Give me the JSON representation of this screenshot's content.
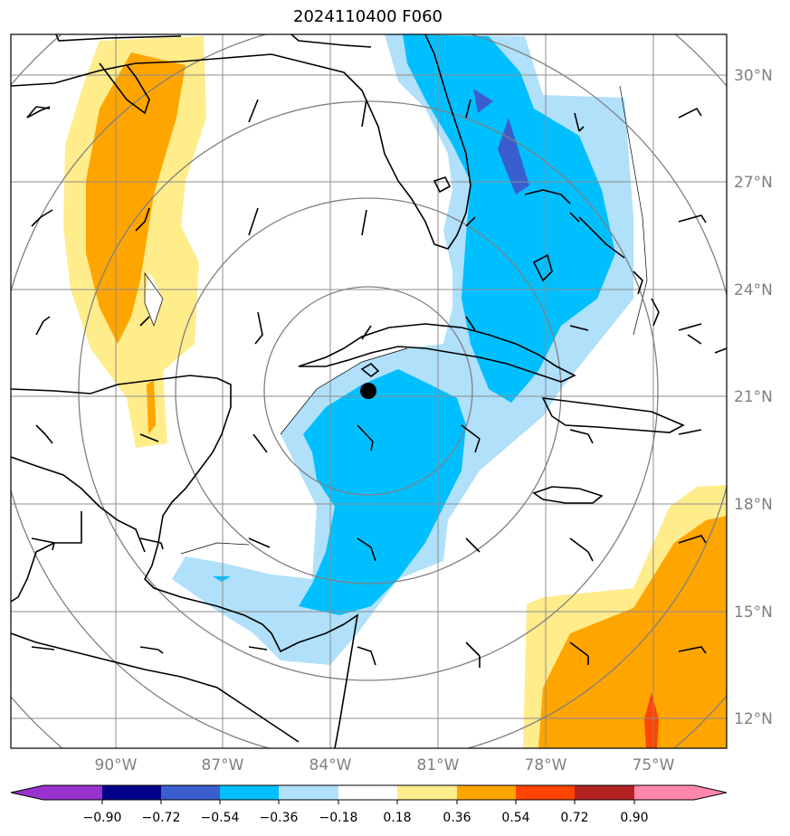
{
  "title": "2024110400 F060",
  "map": {
    "lon_ticks": [
      "90°W",
      "87°W",
      "84°W",
      "81°W",
      "78°W",
      "75°W"
    ],
    "lat_ticks": [
      "30°N",
      "27°N",
      "24°N",
      "21°N",
      "18°N",
      "15°N",
      "12°N"
    ],
    "storm_center_marker": "black-dot",
    "range_rings": 5
  },
  "colorbar": {
    "ticks": [
      "−0.90",
      "−0.72",
      "−0.54",
      "−0.36",
      "−0.18",
      "0.18",
      "0.36",
      "0.54",
      "0.72",
      "0.90"
    ],
    "colors": [
      "#9932cc",
      "#00008b",
      "#3a5fcd",
      "#00bfff",
      "#b0e0fa",
      "#ffffff",
      "#ffec8b",
      "#ffa500",
      "#ff4500",
      "#b22222",
      "#ff88aa"
    ]
  },
  "colors": {
    "orange": "#ffa500",
    "yellow": "#ffec8b",
    "deep_sky_blue": "#00bfff",
    "light_blue": "#b0e0fa",
    "royal_blue": "#3a5fcd",
    "red_orange": "#ff4500"
  }
}
